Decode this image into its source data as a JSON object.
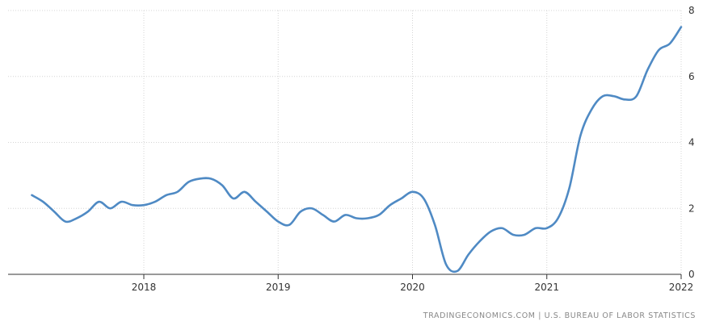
{
  "chart_data": {
    "type": "line",
    "title": "",
    "xlabel": "",
    "ylabel": "",
    "x_tick_labels": [
      "2018",
      "2019",
      "2020",
      "2021",
      "2022"
    ],
    "y_tick_labels": [
      "0",
      "2",
      "4",
      "6",
      "8"
    ],
    "ylim": [
      0,
      8
    ],
    "xlim": [
      "2017-03",
      "2022-01"
    ],
    "grid": true,
    "y_axis_position": "right",
    "line_color": "#4f8ac4",
    "series": [
      {
        "x": [
          "2017-03",
          "2017-04",
          "2017-05",
          "2017-06",
          "2017-07",
          "2017-08",
          "2017-09",
          "2017-10",
          "2017-11",
          "2017-12",
          "2018-01",
          "2018-02",
          "2018-03",
          "2018-04",
          "2018-05",
          "2018-06",
          "2018-07",
          "2018-08",
          "2018-09",
          "2018-10",
          "2018-11",
          "2018-12",
          "2019-01",
          "2019-02",
          "2019-03",
          "2019-04",
          "2019-05",
          "2019-06",
          "2019-07",
          "2019-08",
          "2019-09",
          "2019-10",
          "2019-11",
          "2019-12",
          "2020-01",
          "2020-02",
          "2020-03",
          "2020-04",
          "2020-05",
          "2020-06",
          "2020-07",
          "2020-08",
          "2020-09",
          "2020-10",
          "2020-11",
          "2020-12",
          "2021-01",
          "2021-02",
          "2021-03",
          "2021-04",
          "2021-05",
          "2021-06",
          "2021-07",
          "2021-08",
          "2021-09",
          "2021-10",
          "2021-11",
          "2021-12",
          "2022-01"
        ],
        "values": [
          2.4,
          2.2,
          1.9,
          1.6,
          1.7,
          1.9,
          2.2,
          2.0,
          2.2,
          2.1,
          2.1,
          2.2,
          2.4,
          2.5,
          2.8,
          2.9,
          2.9,
          2.7,
          2.3,
          2.5,
          2.2,
          1.9,
          1.6,
          1.5,
          1.9,
          2.0,
          1.8,
          1.6,
          1.8,
          1.7,
          1.7,
          1.8,
          2.1,
          2.3,
          2.5,
          2.3,
          1.5,
          0.3,
          0.1,
          0.6,
          1.0,
          1.3,
          1.4,
          1.2,
          1.2,
          1.4,
          1.4,
          1.7,
          2.6,
          4.2,
          5.0,
          5.4,
          5.4,
          5.3,
          5.4,
          6.2,
          6.8,
          7.0,
          7.5
        ]
      }
    ]
  },
  "source": {
    "text": "TRADINGECONOMICS.COM  |  U.S. BUREAU OF LABOR STATISTICS"
  }
}
